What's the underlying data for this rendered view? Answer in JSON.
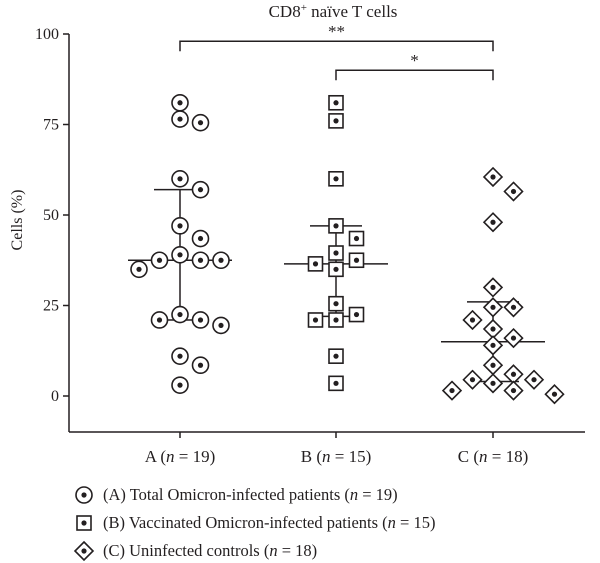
{
  "chart_data": {
    "type": "scatter",
    "title_main": "CD8",
    "title_sup": "+",
    "title_rest": " naïve T cells",
    "ylabel": "Cells (%)",
    "ylim": [
      -10,
      100
    ],
    "yticks": [
      0,
      25,
      50,
      75,
      100
    ],
    "groups": [
      {
        "label_prefix": "A (",
        "label_n": "n",
        "label_suffix": " = 19)",
        "marker": "circle",
        "median": 37.5,
        "q1": 21,
        "q3": 57,
        "values": [
          81,
          75.5,
          76.5,
          60,
          57,
          47,
          43.5,
          39,
          37.5,
          37.5,
          37.5,
          35,
          22.5,
          21,
          21,
          19.5,
          11,
          8.5,
          3
        ]
      },
      {
        "label_prefix": "B (",
        "label_n": "n",
        "label_suffix": " = 15)",
        "marker": "square",
        "median": 36.5,
        "q1": 22,
        "q3": 47,
        "values": [
          81,
          76,
          60,
          47,
          43.5,
          39.5,
          37.5,
          36.5,
          35,
          25.5,
          22.5,
          21,
          21,
          11,
          3.5
        ]
      },
      {
        "label_prefix": "C (",
        "label_n": "n",
        "label_suffix": " = 18)",
        "marker": "diamond",
        "median": 15,
        "q1": 4,
        "q3": 26,
        "values": [
          60.5,
          56.5,
          48,
          30,
          24.5,
          24.5,
          21,
          18.5,
          16,
          14,
          8.5,
          6,
          4.5,
          4.5,
          3.5,
          1.5,
          1.5,
          0.5
        ]
      }
    ],
    "significance": [
      {
        "from": 0,
        "to": 2,
        "y": 98,
        "label": "**"
      },
      {
        "from": 1,
        "to": 2,
        "y": 90,
        "label": "*"
      }
    ],
    "legend": [
      {
        "marker": "circle",
        "text_a": "(A) Total Omicron-infected patients (",
        "text_n": "n",
        "text_b": " = 19)"
      },
      {
        "marker": "square",
        "text_a": "(B) Vaccinated Omicron-infected patients (",
        "text_n": "n",
        "text_b": " = 15)"
      },
      {
        "marker": "diamond",
        "text_a": "(C) Uninfected controls (",
        "text_n": "n",
        "text_b": " = 18)"
      }
    ],
    "legend_position": "bottom-left",
    "grid": false
  }
}
